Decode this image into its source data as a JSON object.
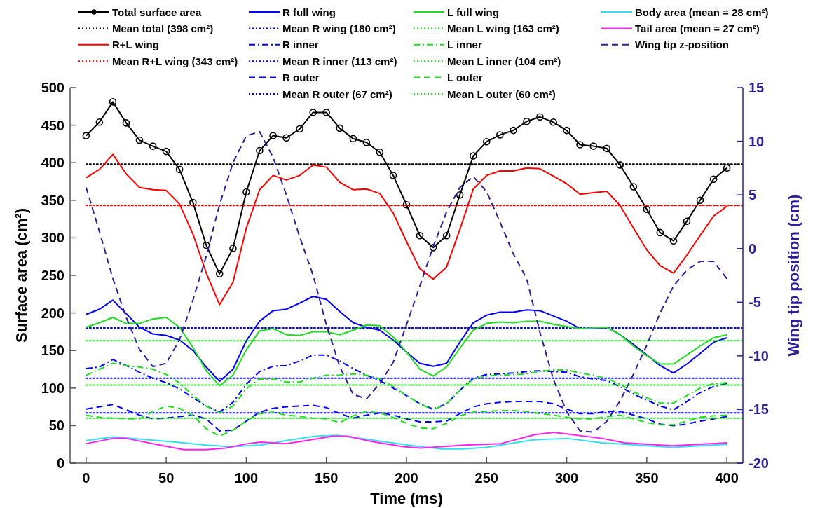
{
  "chart_data": {
    "type": "line",
    "xlabel": "Time (ms)",
    "ylabel": "Surface area (cm²)",
    "y2label": "Wing tip position (cm)",
    "xlim": [
      -10,
      410
    ],
    "xticks": [
      0,
      50,
      100,
      150,
      200,
      250,
      300,
      350,
      400
    ],
    "ylim": [
      0,
      500
    ],
    "yticks": [
      0,
      50,
      100,
      150,
      200,
      250,
      300,
      350,
      400,
      450,
      500
    ],
    "y2lim": [
      -20,
      15
    ],
    "y2ticks": [
      -20,
      -15,
      -10,
      -5,
      0,
      5,
      10,
      15
    ],
    "legend": "top",
    "grid": false,
    "x": [
      0,
      8.3,
      16.7,
      25,
      33.3,
      41.7,
      50,
      58.3,
      66.7,
      75,
      83.3,
      91.7,
      100,
      108.3,
      116.7,
      125,
      133.3,
      141.7,
      150,
      158.3,
      166.7,
      175,
      183.3,
      191.7,
      200,
      208.3,
      216.7,
      225,
      233.3,
      241.7,
      250,
      258.3,
      266.7,
      275,
      283.3,
      291.7,
      300,
      308.3,
      316.7,
      325,
      333.3,
      341.7,
      350,
      358.3,
      366.7,
      375,
      383.3,
      391.7,
      400
    ],
    "series": [
      {
        "name": "Total surface area",
        "color": "#000000",
        "marker": "circle",
        "line_style": "solid",
        "values": [
          436,
          454,
          481,
          453,
          430,
          422,
          415,
          391,
          347,
          290,
          252,
          286,
          361,
          416,
          436,
          433,
          445,
          467,
          467,
          446,
          432,
          427,
          414,
          383,
          344,
          303,
          287,
          303,
          357,
          409,
          428,
          437,
          443,
          455,
          461,
          454,
          443,
          424,
          422,
          419,
          397,
          368,
          338,
          307,
          296,
          322,
          350,
          378,
          393
        ]
      },
      {
        "name": "Mean total (398 cm²)",
        "color": "#000000",
        "line_style": "dotted",
        "x": [
          0,
          410
        ],
        "values": [
          398,
          398
        ]
      },
      {
        "name": "R+L wing",
        "color": "#ff0000",
        "line_style": "solid",
        "values": [
          380,
          391,
          411,
          385,
          367,
          364,
          363,
          345,
          305,
          253,
          211,
          241,
          313,
          364,
          383,
          377,
          383,
          397,
          394,
          374,
          364,
          365,
          359,
          333,
          295,
          259,
          245,
          261,
          311,
          365,
          383,
          389,
          389,
          393,
          392,
          382,
          372,
          358,
          360,
          362,
          343,
          313,
          284,
          263,
          253,
          277,
          303,
          329,
          342
        ]
      },
      {
        "name": "Mean R+L wing (343 cm²)",
        "color": "#ff0000",
        "line_style": "dotted",
        "x": [
          0,
          410
        ],
        "values": [
          343,
          343
        ]
      },
      {
        "name": "R full wing",
        "color": "#0000ff",
        "line_style": "solid",
        "values": [
          198,
          205,
          217,
          199,
          181,
          172,
          170,
          164,
          150,
          128,
          109,
          125,
          163,
          189,
          203,
          205,
          213,
          222,
          218,
          202,
          187,
          181,
          177,
          164,
          148,
          133,
          129,
          133,
          161,
          187,
          197,
          201,
          201,
          204,
          203,
          196,
          189,
          179,
          179,
          181,
          171,
          158,
          144,
          130,
          120,
          132,
          146,
          161,
          167
        ]
      },
      {
        "name": "Mean R wing (180 cm²)",
        "color": "#0000ff",
        "line_style": "dotted",
        "x": [
          0,
          410
        ],
        "values": [
          180,
          180
        ]
      },
      {
        "name": "R inner",
        "color": "#0000ff",
        "line_style": "dashdot",
        "values": [
          126,
          128,
          138,
          130,
          121,
          113,
          107,
          99,
          87,
          76,
          68,
          81,
          105,
          122,
          129,
          130,
          136,
          144,
          144,
          136,
          126,
          117,
          110,
          100,
          90,
          79,
          72,
          79,
          97,
          113,
          118,
          119,
          120,
          122,
          123,
          122,
          121,
          115,
          112,
          110,
          102,
          92,
          84,
          76,
          71,
          82,
          94,
          102,
          106
        ]
      },
      {
        "name": "Mean R inner (113 cm²)",
        "color": "#0000ff",
        "line_style": "dotted",
        "x": [
          0,
          410
        ],
        "values": [
          113,
          113
        ]
      },
      {
        "name": "R outer",
        "color": "#0000ff",
        "line_style": "dashed",
        "values": [
          72,
          75,
          78,
          71,
          64,
          59,
          60,
          62,
          64,
          59,
          43,
          44,
          56,
          68,
          73,
          75,
          76,
          77,
          74,
          66,
          60,
          64,
          67,
          64,
          59,
          55,
          55,
          56,
          66,
          75,
          79,
          81,
          82,
          82,
          82,
          79,
          72,
          66,
          66,
          69,
          69,
          64,
          59,
          52,
          50,
          52,
          56,
          59,
          62
        ]
      },
      {
        "name": "Mean R outer (67 cm²)",
        "color": "#0000ff",
        "line_style": "dotted",
        "x": [
          0,
          410
        ],
        "values": [
          67,
          67
        ]
      },
      {
        "name": "L full wing",
        "color": "#22dd22",
        "line_style": "solid",
        "values": [
          181,
          187,
          194,
          186,
          186,
          192,
          194,
          181,
          154,
          123,
          103,
          117,
          151,
          176,
          179,
          171,
          170,
          175,
          175,
          171,
          177,
          184,
          183,
          168,
          148,
          125,
          116,
          128,
          153,
          177,
          186,
          188,
          187,
          189,
          189,
          185,
          182,
          179,
          180,
          181,
          171,
          156,
          143,
          132,
          132,
          144,
          156,
          167,
          171
        ]
      },
      {
        "name": "Mean L wing (163 cm²)",
        "color": "#22dd22",
        "line_style": "dotted",
        "x": [
          0,
          410
        ],
        "values": [
          163,
          163
        ]
      },
      {
        "name": "L inner",
        "color": "#22dd22",
        "line_style": "dashdot",
        "values": [
          117,
          125,
          133,
          130,
          128,
          125,
          118,
          107,
          90,
          76,
          67,
          76,
          99,
          112,
          112,
          108,
          108,
          113,
          117,
          117,
          119,
          117,
          112,
          102,
          90,
          79,
          71,
          79,
          97,
          112,
          116,
          117,
          118,
          119,
          122,
          124,
          124,
          120,
          117,
          113,
          105,
          95,
          87,
          80,
          80,
          90,
          100,
          106,
          107
        ]
      },
      {
        "name": "Mean L inner (104 cm²)",
        "color": "#22dd22",
        "line_style": "dotted",
        "x": [
          0,
          410
        ],
        "values": [
          104,
          104
        ]
      },
      {
        "name": "L outer",
        "color": "#22dd22",
        "line_style": "dashed",
        "values": [
          64,
          61,
          60,
          59,
          59,
          69,
          76,
          73,
          63,
          46,
          36,
          44,
          56,
          66,
          68,
          64,
          62,
          60,
          59,
          54,
          63,
          69,
          67,
          61,
          53,
          47,
          46,
          53,
          63,
          68,
          69,
          70,
          70,
          69,
          66,
          64,
          61,
          59,
          59,
          62,
          64,
          59,
          54,
          51,
          51,
          56,
          61,
          63,
          64
        ]
      },
      {
        "name": "Mean L outer (60 cm²)",
        "color": "#22dd22",
        "line_style": "dotted",
        "x": [
          0,
          410
        ],
        "values": [
          60,
          60
        ]
      },
      {
        "name": "Body area (mean = 28 cm²)",
        "color": "#33e0f0",
        "line_style": "solid",
        "x": [
          0,
          17,
          51,
          75,
          90,
          109,
          125,
          143,
          157,
          178,
          198,
          221,
          235,
          250,
          279,
          300,
          322,
          351,
          366,
          400
        ],
        "values": [
          30,
          35,
          29,
          24,
          22,
          24,
          30,
          36,
          37,
          31,
          25,
          19,
          19,
          21,
          31,
          33,
          27,
          23,
          21,
          25
        ]
      },
      {
        "name": "Tail area (mean = 27 cm²)",
        "color": "#ff22ee",
        "line_style": "solid",
        "x": [
          0,
          17,
          25,
          51,
          61,
          75,
          87,
          101,
          109,
          125,
          134,
          154,
          163,
          178,
          198,
          209,
          236,
          259,
          280,
          292,
          322,
          336,
          366,
          400
        ],
        "values": [
          26,
          33,
          33,
          22,
          18,
          18,
          20,
          26,
          28,
          26,
          29,
          36,
          36,
          29,
          22,
          20,
          24,
          26,
          38,
          41,
          33,
          27,
          23,
          27
        ]
      },
      {
        "name": "Wing tip z-position",
        "color": "#2e1f96",
        "line_style": "dashed",
        "axis": "y2",
        "values": [
          5.7,
          1.6,
          -2.8,
          -6.4,
          -9.4,
          -11.0,
          -10.7,
          -8.5,
          -4.8,
          -0.7,
          4.1,
          8.0,
          10.5,
          10.9,
          8.5,
          5.0,
          1.1,
          -2.5,
          -7.1,
          -11.0,
          -13.6,
          -14.0,
          -12.6,
          -10.6,
          -7.1,
          -3.5,
          0.2,
          3.4,
          5.7,
          6.7,
          5.3,
          2.5,
          -0.5,
          -2.8,
          -7.8,
          -12.2,
          -15.2,
          -17.0,
          -17.1,
          -16.1,
          -14.2,
          -11.7,
          -9.0,
          -6.0,
          -3.5,
          -2.0,
          -1.2,
          -1.2,
          -2.8
        ]
      }
    ]
  }
}
